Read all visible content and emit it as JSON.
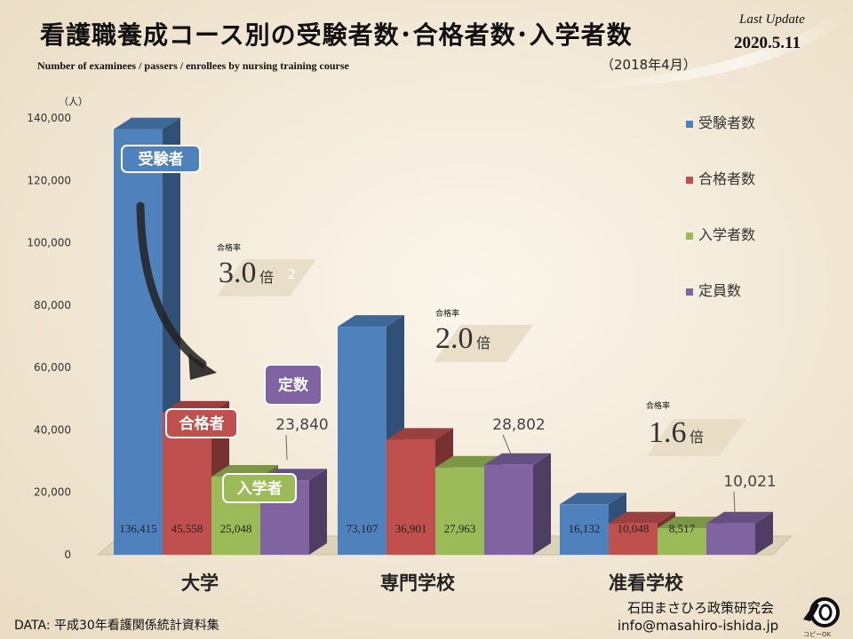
{
  "header": {
    "title": "看護職養成コース別の受験者数･合格者数･入学者数",
    "subtitle": "Number  of examinees / passers / enrollees by nursing  training  course",
    "date_note": "（2018年4月）",
    "update_label": "Last Update",
    "update_date": "2020.5.11"
  },
  "footer": {
    "source": "DATA: 平成30年看護関係統計資料集",
    "org_name": "石田まさひろ政策研究会",
    "org_email": "info@masahiro-ishida.jp",
    "logo_text": "コピーOK"
  },
  "callouts": {
    "examinees": "受験者",
    "passers": "合格者",
    "enrollees": "入学者",
    "quota": "定数"
  },
  "colors": {
    "background": "#f3eadb",
    "examinees": "#4f81bd",
    "passers": "#c0504d",
    "enrollees": "#9bbb59",
    "quota": "#8064a2",
    "floor": "#ddd3b8",
    "text": "#111111"
  },
  "chart_data": {
    "type": "bar",
    "title": "看護職養成コース別の受験者数･合格者数･入学者数",
    "ylabel": "（人）",
    "xlabel": "",
    "ylim": [
      0,
      140000
    ],
    "y_ticks": [
      "0",
      "20,000",
      "40,000",
      "60,000",
      "80,000",
      "100,000",
      "120,000",
      "140,000"
    ],
    "categories": [
      "大学",
      "専門学校",
      "准看学校"
    ],
    "series": [
      {
        "name": "受験者数",
        "values": [
          136415,
          73107,
          16132
        ],
        "labels": [
          "136,415",
          "73,107",
          "16,132"
        ]
      },
      {
        "name": "合格者数",
        "values": [
          45558,
          36901,
          10048
        ],
        "labels": [
          "45,558",
          "36,901",
          "10,048"
        ]
      },
      {
        "name": "入学者数",
        "values": [
          25048,
          27963,
          8517
        ],
        "labels": [
          "25,048",
          "27,963",
          "8,517"
        ]
      },
      {
        "name": "定員数",
        "values": [
          23840,
          28802,
          10021
        ],
        "labels": [
          "23,840",
          "28,802",
          "10,021"
        ]
      }
    ],
    "pass_rates": [
      {
        "label": "合格率",
        "value": "3.0",
        "unit": "倍",
        "extra": "2"
      },
      {
        "label": "合格率",
        "value": "2.0",
        "unit": "倍",
        "extra": ""
      },
      {
        "label": "合格率",
        "value": "1.6",
        "unit": "倍",
        "extra": ""
      }
    ],
    "grid": false,
    "legend": "right"
  }
}
